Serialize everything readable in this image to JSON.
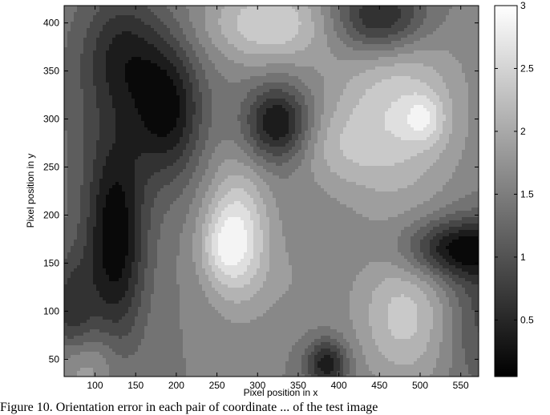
{
  "chart_data": {
    "type": "heatmap",
    "style": "filled contour",
    "colormap": "gray",
    "xlabel": "Pixel position in x",
    "ylabel": "Pixel position in y",
    "xlim": [
      62,
      572
    ],
    "ylim": [
      32,
      418
    ],
    "x_ticks": [
      100,
      150,
      200,
      250,
      300,
      350,
      400,
      450,
      500,
      550
    ],
    "y_ticks": [
      50,
      100,
      150,
      200,
      250,
      300,
      350,
      400
    ],
    "colorbar": {
      "min": 0.05,
      "max": 3,
      "levels": [
        0.25,
        0.5,
        0.75,
        1,
        1.25,
        1.5,
        1.75,
        2,
        2.25,
        2.5,
        2.75
      ],
      "ticks": [
        0.5,
        1,
        1.5,
        2,
        2.5,
        3
      ]
    },
    "field": {
      "base": 1.5,
      "features": [
        {
          "x": 115,
          "y": 300,
          "amp": -0.35,
          "sx": 50,
          "sy": 90
        },
        {
          "x": 190,
          "y": 310,
          "amp": -1.25,
          "sx": 30,
          "sy": 50
        },
        {
          "x": 135,
          "y": 370,
          "amp": -0.8,
          "sx": 35,
          "sy": 45
        },
        {
          "x": 325,
          "y": 295,
          "amp": -1.35,
          "sx": 28,
          "sy": 28
        },
        {
          "x": 450,
          "y": 405,
          "amp": -1.35,
          "sx": 42,
          "sy": 28
        },
        {
          "x": 125,
          "y": 170,
          "amp": -1.35,
          "sx": 26,
          "sy": 75
        },
        {
          "x": 70,
          "y": 95,
          "amp": -0.9,
          "sx": 20,
          "sy": 45
        },
        {
          "x": 545,
          "y": 165,
          "amp": -1.35,
          "sx": 48,
          "sy": 22
        },
        {
          "x": 575,
          "y": 100,
          "amp": -0.6,
          "sx": 30,
          "sy": 60
        },
        {
          "x": 385,
          "y": 45,
          "amp": -1.2,
          "sx": 18,
          "sy": 18
        },
        {
          "x": 315,
          "y": 400,
          "amp": 1.0,
          "sx": 55,
          "sy": 30
        },
        {
          "x": 470,
          "y": 310,
          "amp": 0.95,
          "sx": 55,
          "sy": 70
        },
        {
          "x": 505,
          "y": 300,
          "amp": 0.6,
          "sx": 18,
          "sy": 18
        },
        {
          "x": 275,
          "y": 180,
          "amp": 1.2,
          "sx": 28,
          "sy": 50
        },
        {
          "x": 255,
          "y": 165,
          "amp": 0.45,
          "sx": 20,
          "sy": 25
        },
        {
          "x": 480,
          "y": 95,
          "amp": 0.85,
          "sx": 40,
          "sy": 50
        },
        {
          "x": 80,
          "y": 45,
          "amp": 0.7,
          "sx": 30,
          "sy": 25
        },
        {
          "x": 395,
          "y": 270,
          "amp": 0.4,
          "sx": 40,
          "sy": 30
        },
        {
          "x": 345,
          "y": 130,
          "amp": 0.2,
          "sx": 40,
          "sy": 40
        }
      ]
    }
  },
  "caption": "Figure 10. Orientation error in each pair of coordinate ... of the test image"
}
